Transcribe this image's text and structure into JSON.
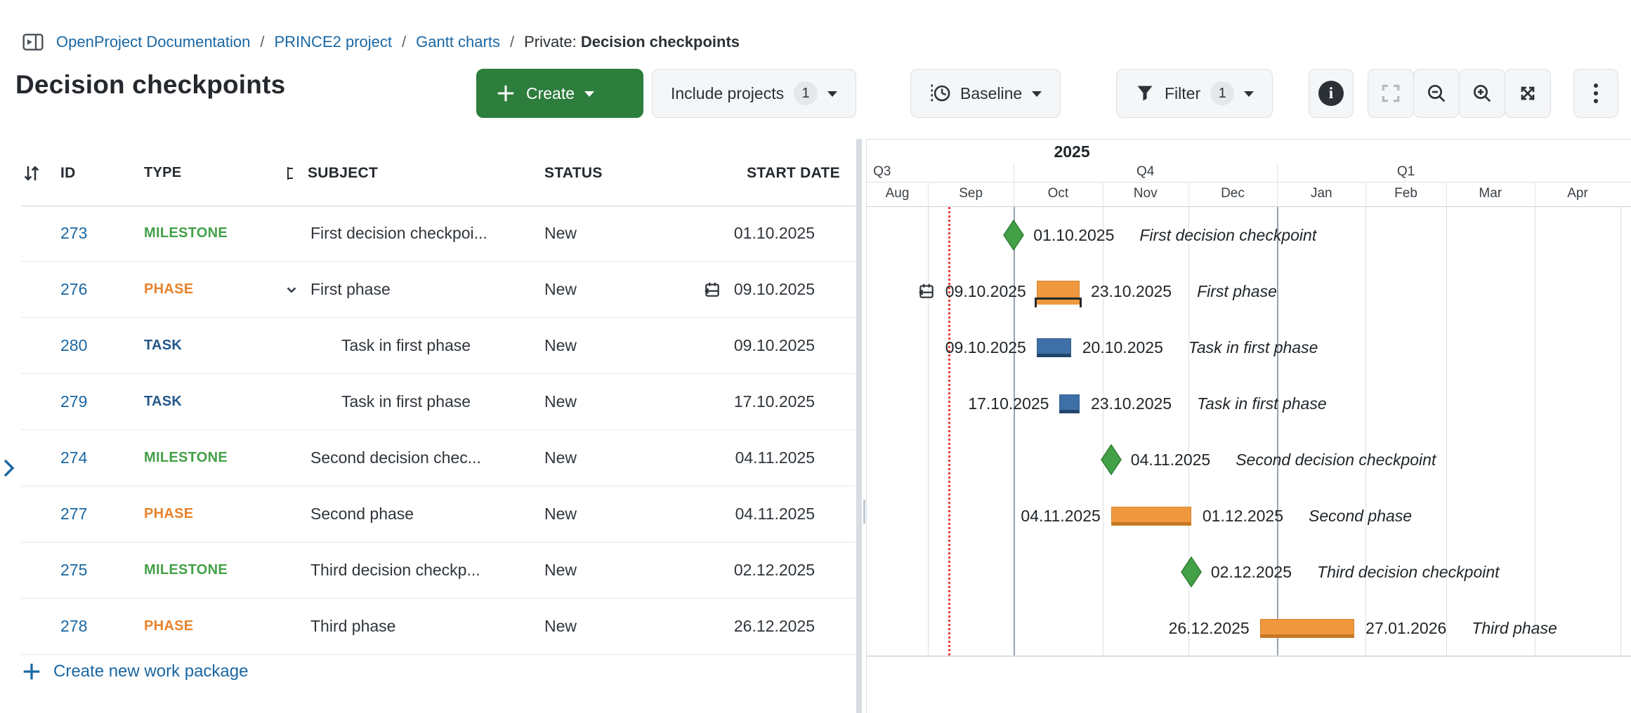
{
  "breadcrumb": {
    "separator": "/",
    "links": [
      "OpenProject Documentation",
      "PRINCE2 project",
      "Gantt charts"
    ],
    "current_prefix": "Private:",
    "current": "Decision checkpoints"
  },
  "page": {
    "title": "Decision checkpoints"
  },
  "toolbar": {
    "create_label": "Create",
    "include_projects_label": "Include projects",
    "include_projects_count": "1",
    "baseline_label": "Baseline",
    "filter_label": "Filter",
    "filter_count": "1"
  },
  "icons": {
    "sidebar_toggle": "panel-with-triangle",
    "plus": "+",
    "caret_down": "▾",
    "baseline": "clock-with-dotted-line",
    "filter": "funnel",
    "info": "i",
    "fullscreen": "corner-brackets",
    "zoom_out": "magnifier-minus",
    "zoom_in": "magnifier-plus",
    "expand": "diagonal-arrows",
    "kebab": "⋮",
    "sort": "down-up-arrows",
    "hierarchy": "outline-levels",
    "chevron_down": "⌄",
    "chevron_right": "›",
    "calendar_manual": "calendar-with-left-arrow"
  },
  "table": {
    "columns": [
      {
        "key": "id",
        "label": "ID"
      },
      {
        "key": "type",
        "label": "TYPE"
      },
      {
        "key": "subject",
        "label": "SUBJECT"
      },
      {
        "key": "status",
        "label": "STATUS"
      },
      {
        "key": "start_date",
        "label": "START DATE"
      }
    ],
    "rows": [
      {
        "id": "273",
        "type": "MILESTONE",
        "subject": "First decision checkpoi...",
        "status": "New",
        "start_date": "01.10.2025"
      },
      {
        "id": "276",
        "type": "PHASE",
        "subject": "First phase",
        "status": "New",
        "start_date": "09.10.2025"
      },
      {
        "id": "280",
        "type": "TASK",
        "subject": "Task in first phase",
        "status": "New",
        "start_date": "09.10.2025"
      },
      {
        "id": "279",
        "type": "TASK",
        "subject": "Task in first phase",
        "status": "New",
        "start_date": "17.10.2025"
      },
      {
        "id": "274",
        "type": "MILESTONE",
        "subject": "Second decision chec...",
        "status": "New",
        "start_date": "04.11.2025"
      },
      {
        "id": "277",
        "type": "PHASE",
        "subject": "Second phase",
        "status": "New",
        "start_date": "04.11.2025"
      },
      {
        "id": "275",
        "type": "MILESTONE",
        "subject": "Third decision checkp...",
        "status": "New",
        "start_date": "02.12.2025"
      },
      {
        "id": "278",
        "type": "PHASE",
        "subject": "Third phase",
        "status": "New",
        "start_date": "26.12.2025"
      }
    ],
    "create_link_label": "Create new work package",
    "type_colors": {
      "MILESTONE": "#43A047",
      "PHASE": "#E8832C",
      "TASK": "#235789"
    }
  },
  "chart_data": {
    "type": "gantt",
    "timeline": {
      "year_label": "2025",
      "quarters": [
        {
          "label": "Q3",
          "start": "01.07.2025",
          "end": "01.10.2025"
        },
        {
          "label": "Q4",
          "start": "01.10.2025",
          "end": "01.01.2026"
        },
        {
          "label": "Q1",
          "start": "01.01.2026",
          "end": "01.04.2026"
        }
      ],
      "months": [
        {
          "label": "Aug",
          "start": "01.08.2025"
        },
        {
          "label": "Sep",
          "start": "01.09.2025"
        },
        {
          "label": "Oct",
          "start": "01.10.2025"
        },
        {
          "label": "Nov",
          "start": "01.11.2025"
        },
        {
          "label": "Dec",
          "start": "01.12.2025"
        },
        {
          "label": "Jan",
          "start": "01.01.2026"
        },
        {
          "label": "Feb",
          "start": "01.02.2026"
        },
        {
          "label": "Mar",
          "start": "01.03.2026"
        },
        {
          "label": "Apr",
          "start": "01.04.2026"
        }
      ],
      "today": "08.09.2025"
    },
    "items": [
      {
        "kind": "milestone",
        "name": "First decision checkpoint",
        "date": "01.10.2025"
      },
      {
        "kind": "phase",
        "name": "First phase",
        "start": "09.10.2025",
        "end": "23.10.2025",
        "manual": true,
        "bracket": true
      },
      {
        "kind": "task",
        "name": "Task in first phase",
        "start": "09.10.2025",
        "end": "20.10.2025"
      },
      {
        "kind": "task",
        "name": "Task in first phase",
        "start": "17.10.2025",
        "end": "23.10.2025"
      },
      {
        "kind": "milestone",
        "name": "Second decision checkpoint",
        "date": "04.11.2025"
      },
      {
        "kind": "phase",
        "name": "Second phase",
        "start": "04.11.2025",
        "end": "01.12.2025"
      },
      {
        "kind": "milestone",
        "name": "Third decision checkpoint",
        "date": "02.12.2025"
      },
      {
        "kind": "phase",
        "name": "Third phase",
        "start": "26.12.2025",
        "end": "27.01.2026"
      }
    ],
    "colors": {
      "milestone": "#43A047",
      "milestone_border": "#2E7D32",
      "phase": "#F0983E",
      "phase_dark": "#C87722",
      "task": "#3E6FA7",
      "task_dark": "#23456B",
      "today_line": "#EE3B36"
    }
  }
}
